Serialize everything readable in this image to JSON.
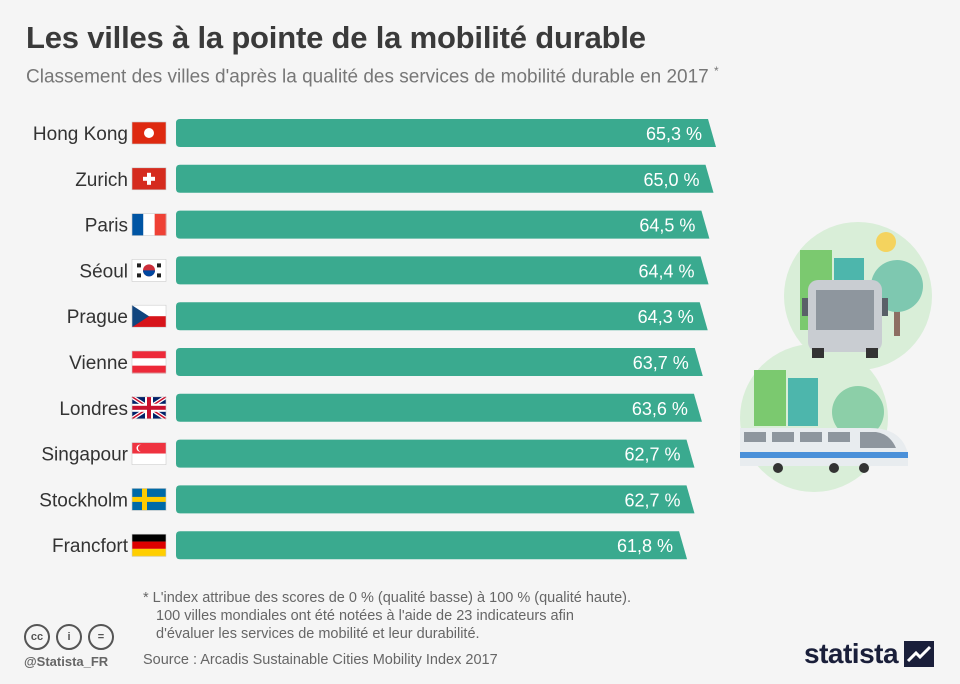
{
  "header": {
    "title": "Les villes à la pointe de la mobilité durable",
    "subtitle": "Classement des villes d'après la qualité des services de mobilité durable en 2017",
    "subtitle_mark": "*"
  },
  "chart_data": {
    "type": "bar",
    "orientation": "horizontal",
    "categories": [
      "Hong Kong",
      "Zurich",
      "Paris",
      "Séoul",
      "Prague",
      "Vienne",
      "Londres",
      "Singapour",
      "Stockholm",
      "Francfort"
    ],
    "values": [
      65.3,
      65.0,
      64.5,
      64.4,
      64.3,
      63.7,
      63.6,
      62.7,
      62.7,
      61.8
    ],
    "value_labels": [
      "65,3 %",
      "65,0 %",
      "64,5 %",
      "64,4 %",
      "64,3 %",
      "63,7 %",
      "63,6 %",
      "62,7 %",
      "62,7 %",
      "61,8 %"
    ],
    "flags": [
      "hong-kong",
      "switzerland",
      "france",
      "south-korea",
      "czechia",
      "austria",
      "united-kingdom",
      "singapore",
      "sweden",
      "germany"
    ],
    "unit": "%",
    "xlim": [
      0,
      65.3
    ],
    "bar_color": "#3aaa8f",
    "grid": false,
    "legend": "none"
  },
  "footnote": {
    "line1": "* L'index attribue des scores de 0 % (qualité basse) à 100 % (qualité haute).",
    "line2": "100 villes mondiales ont été notées à l'aide de 23 indicateurs afin",
    "line3": "d'évaluer les services de mobilité et leur durabilité."
  },
  "source": "Source : Arcadis Sustainable Cities Mobility Index 2017",
  "footer": {
    "handle": "@Statista_FR",
    "license_icons": [
      "creative-commons-icon",
      "attribution-icon",
      "no-derivatives-icon"
    ],
    "license_glyphs": [
      "cc",
      "i",
      "="
    ],
    "brand": "statista"
  },
  "illustration": {
    "icons": [
      "city-buildings-icon",
      "bus-icon",
      "tree-icon",
      "sun-icon",
      "train-icon"
    ]
  }
}
